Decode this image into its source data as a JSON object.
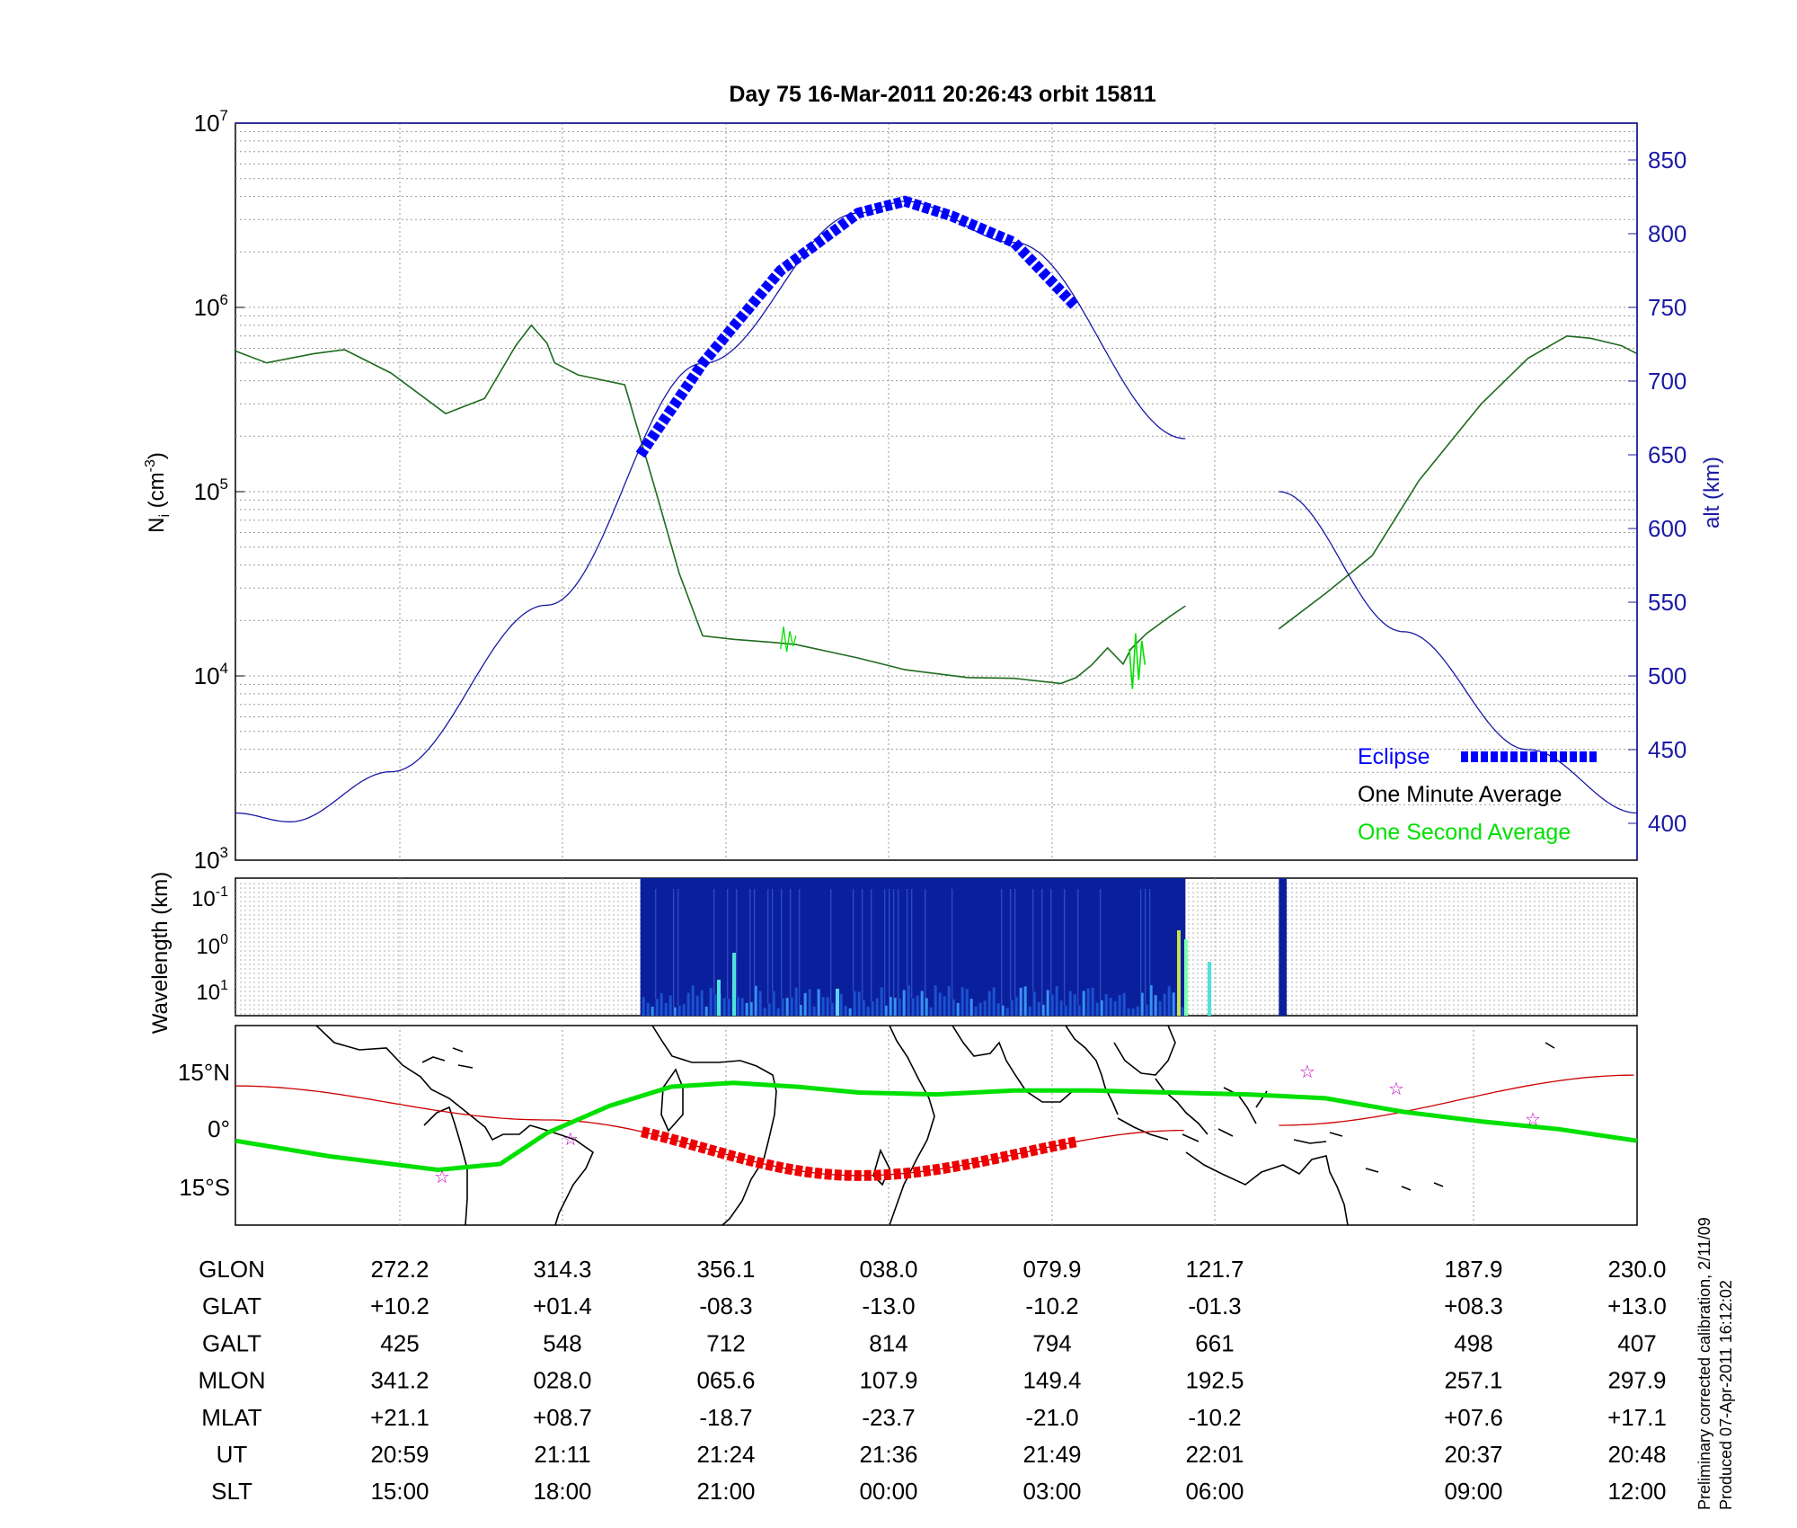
{
  "title": "Day 75  16-Mar-2011 20:26:43   orbit 15811",
  "footer": {
    "line1": "Preliminary corrected calibration, 2/11/09",
    "line2": "Produced 07-Apr-2011 16:12:02"
  },
  "colors": {
    "eclipse": "#0000ff",
    "altitude": "#1a1aa6",
    "minute_avg": "#1f6b1f",
    "second_avg": "#00e000",
    "ground_track": "#cc0000",
    "mag_equator": "#00e000",
    "star": "#c000c0",
    "spectrogram_bg": "#0a1f9c"
  },
  "chart_data": [
    {
      "type": "line",
      "title": "Day 75  16-Mar-2011 20:26:43   orbit 15811",
      "ylabel": "N_i (cm^-3)",
      "y2label": "alt (km)",
      "ylim": [
        1000,
        10000000
      ],
      "yscale": "log",
      "y_ticks": [
        {
          "base": "10",
          "exp": "3"
        },
        {
          "base": "10",
          "exp": "4"
        },
        {
          "base": "10",
          "exp": "5"
        },
        {
          "base": "10",
          "exp": "6"
        },
        {
          "base": "10",
          "exp": "7"
        }
      ],
      "y2lim": [
        375,
        875
      ],
      "y2_ticks": [
        "400",
        "450",
        "500",
        "550",
        "600",
        "650",
        "700",
        "750",
        "800",
        "850"
      ],
      "grid": true,
      "legend_position": "bottom-right",
      "legend": [
        "Eclipse",
        "One Minute Average",
        "One Second Average"
      ],
      "series": [
        {
          "name": "One Minute Average",
          "x": [
            0,
            0.2,
            0.5,
            0.7,
            1.0,
            1.35,
            1.6,
            1.8,
            1.9,
            2.0,
            2.05,
            2.2,
            2.5,
            2.7,
            2.85,
            3.0,
            3.2,
            3.45,
            3.6,
            3.8,
            4.0,
            4.3,
            4.7,
            5.0,
            5.3,
            5.4,
            5.5,
            5.6,
            5.7,
            5.75,
            5.85,
            6.0,
            6.1
          ],
          "y": [
            580000,
            500000,
            560000,
            590000,
            440000,
            265000,
            320000,
            620000,
            800000,
            640000,
            500000,
            430000,
            380000,
            100000,
            36000,
            16500,
            15800,
            15200,
            14800,
            13600,
            12500,
            10800,
            9800,
            9700,
            9100,
            9800,
            11500,
            14200,
            11600,
            14000,
            17000,
            21000,
            24000
          ]
        },
        {
          "name": "One Minute Average (after gap)",
          "x": [
            6.7,
            7.0,
            7.3,
            7.6,
            8.0,
            8.3,
            8.55,
            8.7,
            8.9,
            9.0
          ],
          "y": [
            18000,
            28000,
            45000,
            115000,
            300000,
            530000,
            700000,
            680000,
            620000,
            560000
          ]
        },
        {
          "name": "One Second Average",
          "x": [
            3.5,
            3.52,
            3.54,
            3.56,
            3.58,
            3.6,
            5.74,
            5.76,
            5.78,
            5.8,
            5.82,
            5.84
          ],
          "y": [
            14000,
            18500,
            13500,
            17500,
            14500,
            16500,
            14000,
            8500,
            17000,
            9500,
            15500,
            11500
          ]
        },
        {
          "name": "alt (km)",
          "axis": "right",
          "x": [
            0,
            0.35,
            1.0,
            2.0,
            3.0,
            4.0,
            4.3,
            5.0,
            6.1,
            6.7,
            7.5,
            8.3,
            9.0
          ],
          "y": [
            407,
            401,
            435,
            548,
            712,
            814,
            822,
            794,
            661,
            625,
            530,
            450,
            407
          ]
        },
        {
          "name": "Eclipse",
          "axis": "right",
          "x": [
            2.6,
            3.0,
            3.5,
            4.0,
            4.3,
            4.6,
            5.0,
            5.4
          ],
          "y": [
            650,
            712,
            775,
            814,
            822,
            812,
            794,
            750
          ]
        }
      ]
    },
    {
      "type": "heatmap",
      "ylabel": "Wavelength (km)",
      "y_ticks": [
        {
          "base": "10",
          "exp": "-1"
        },
        {
          "base": "10",
          "exp": "0"
        },
        {
          "base": "10",
          "exp": "1"
        }
      ],
      "data_spans": [
        [
          2.6,
          6.1
        ],
        [
          6.7,
          6.75
        ]
      ]
    },
    {
      "type": "line",
      "y_ticks": [
        "15°N",
        "0°",
        "15°S"
      ],
      "series": [
        {
          "name": "orbit ground track",
          "x": [
            0,
            2.0,
            4.0,
            6.1,
            6.7,
            9.0
          ],
          "y": [
            10.2,
            1.4,
            -13.0,
            -1.3,
            0,
            13.0
          ]
        },
        {
          "name": "magnetic equator",
          "x": [
            0,
            0.6,
            1.3,
            1.7,
            2.0,
            2.4,
            2.8,
            3.2,
            3.6,
            4.0,
            4.5,
            5.0,
            5.5,
            6.0,
            6.5,
            7.0,
            7.5,
            8.0,
            8.5,
            9.0
          ],
          "y": [
            -4,
            -8,
            -11.5,
            -10,
            -2,
            5,
            10,
            11,
            10,
            8.5,
            8,
            9,
            9,
            8.5,
            8,
            7,
            3.5,
            1,
            -1,
            -4
          ]
        }
      ]
    },
    {
      "type": "table",
      "columns": [
        "272.2",
        "314.3",
        "356.1",
        "038.0",
        "079.9",
        "121.7",
        "187.9",
        "230.0"
      ],
      "rows": [
        {
          "label": "GLON",
          "values": [
            "272.2",
            "314.3",
            "356.1",
            "038.0",
            "079.9",
            "121.7",
            "187.9",
            "230.0"
          ]
        },
        {
          "label": "GLAT",
          "values": [
            "+10.2",
            "+01.4",
            "-08.3",
            "-13.0",
            "-10.2",
            "-01.3",
            "+08.3",
            "+13.0"
          ]
        },
        {
          "label": "GALT",
          "values": [
            "425",
            "548",
            "712",
            "814",
            "794",
            "661",
            "498",
            "407"
          ]
        },
        {
          "label": "MLON",
          "values": [
            "341.2",
            "028.0",
            "065.6",
            "107.9",
            "149.4",
            "192.5",
            "257.1",
            "297.9"
          ]
        },
        {
          "label": "MLAT",
          "values": [
            "+21.1",
            "+08.7",
            "-18.7",
            "-23.7",
            "-21.0",
            "-10.2",
            "+07.6",
            "+17.1"
          ]
        },
        {
          "label": "UT",
          "values": [
            "20:59",
            "21:11",
            "21:24",
            "21:36",
            "21:49",
            "22:01",
            "20:37",
            "20:48"
          ]
        },
        {
          "label": "SLT",
          "values": [
            "15:00",
            "18:00",
            "21:00",
            "00:00",
            "03:00",
            "06:00",
            "09:00",
            "12:00"
          ]
        }
      ]
    }
  ]
}
